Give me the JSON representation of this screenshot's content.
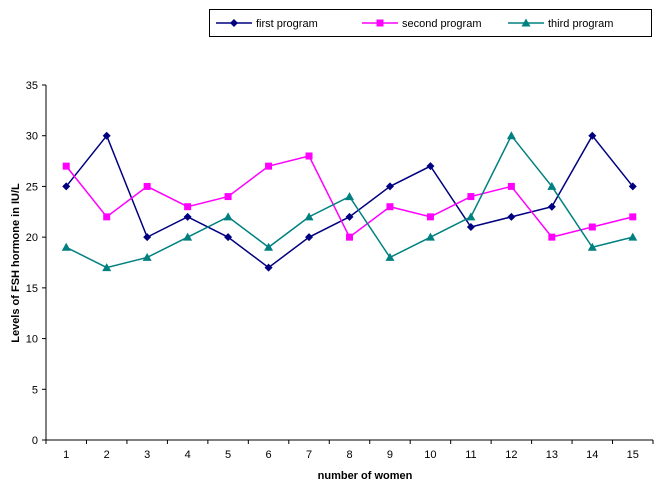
{
  "chart_data": {
    "type": "line",
    "xlabel": "number of women",
    "ylabel": "Levels of FSH hormone in IU/L",
    "categories": [
      "1",
      "2",
      "3",
      "4",
      "5",
      "6",
      "7",
      "8",
      "9",
      "10",
      "11",
      "12",
      "13",
      "14",
      "15"
    ],
    "ylim": [
      0,
      35
    ],
    "yticks": [
      "0",
      "5",
      "10",
      "15",
      "20",
      "25",
      "30",
      "35"
    ],
    "grid": false,
    "legend_position": "top-right",
    "series": [
      {
        "name": "first program",
        "color": "#000080",
        "marker": "diamond",
        "values": [
          25,
          30,
          20,
          22,
          20,
          17,
          20,
          22,
          25,
          27,
          21,
          22,
          23,
          30,
          25
        ]
      },
      {
        "name": "second program",
        "color": "#FF00FF",
        "marker": "square",
        "values": [
          27,
          22,
          25,
          23,
          24,
          27,
          28,
          20,
          23,
          22,
          24,
          25,
          20,
          21,
          22
        ]
      },
      {
        "name": "third program",
        "color": "#008080",
        "marker": "triangle",
        "values": [
          19,
          17,
          18,
          20,
          22,
          19,
          22,
          24,
          18,
          20,
          22,
          30,
          25,
          19,
          20
        ]
      }
    ]
  }
}
